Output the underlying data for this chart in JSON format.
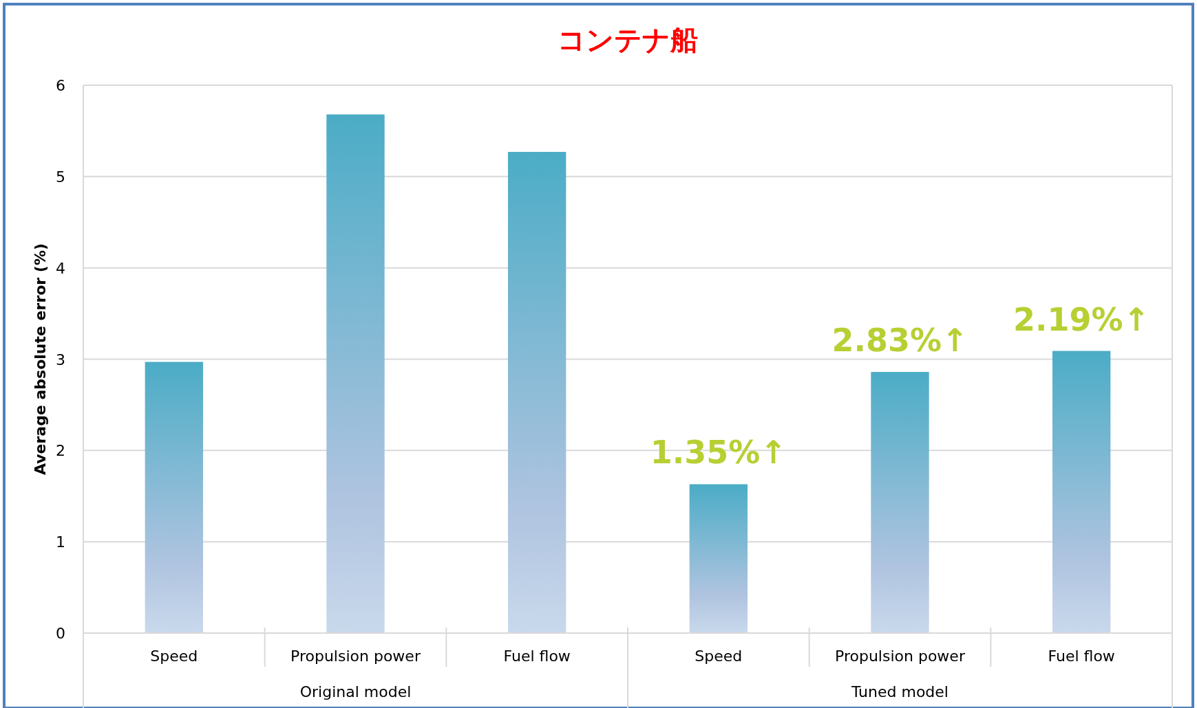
{
  "chart_data": {
    "type": "bar",
    "title": "コンテナ船",
    "ylabel": "Average absolute error (%)",
    "categories": [
      "Speed",
      "Propulsion power",
      "Fuel flow",
      "Speed",
      "Propulsion power",
      "Fuel flow"
    ],
    "values": [
      2.97,
      5.68,
      5.27,
      1.63,
      2.86,
      3.09
    ],
    "color": "#4bacc6",
    "ylim": [
      0,
      6
    ],
    "yticks": [
      0,
      1,
      2,
      3,
      4,
      5,
      6
    ],
    "grid": "y",
    "annotations": [
      "Original model",
      "Tuned model",
      "1.35%↑",
      "2.83%↑",
      "2.19%↑"
    ]
  }
}
